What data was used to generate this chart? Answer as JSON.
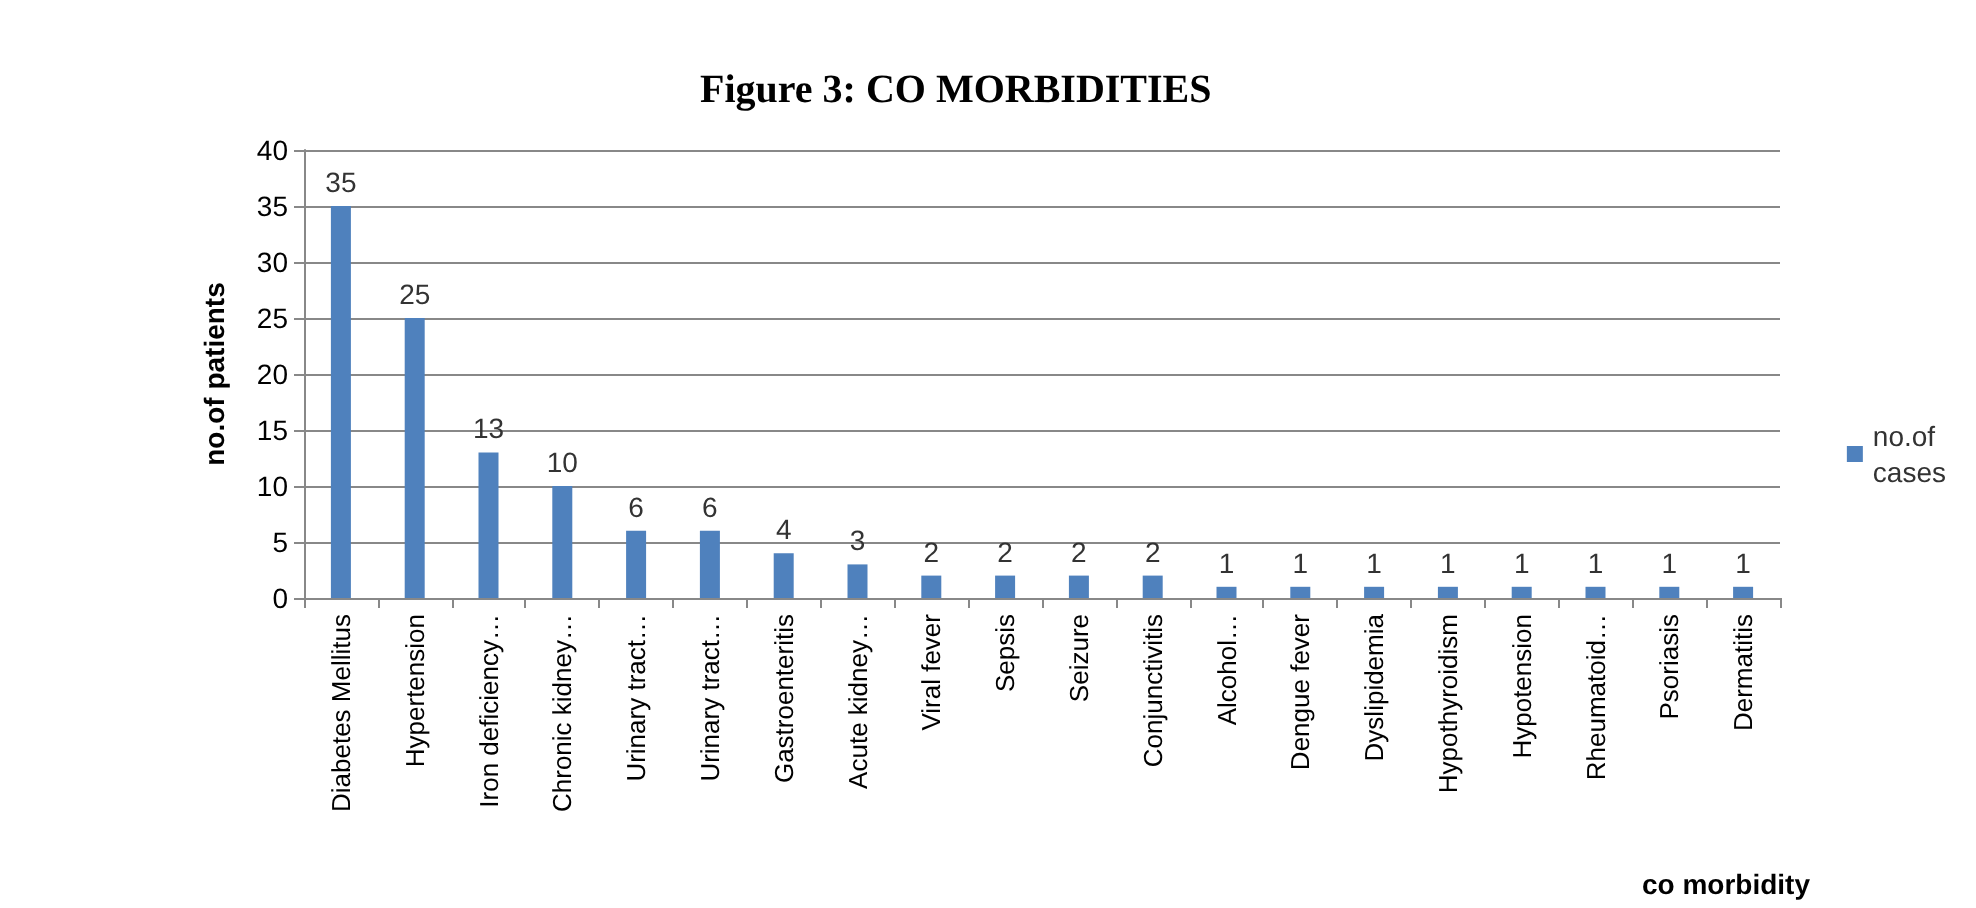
{
  "chart_data": {
    "type": "bar",
    "title": "Figure 3: CO MORBIDITIES",
    "xlabel": "co morbidity",
    "ylabel": "no.of patients",
    "categories": [
      "Diabetes Mellitus",
      "Hypertension",
      "Iron deficiency…",
      "Chronic kidney…",
      "Urinary tract…",
      "Urinary tract…",
      "Gastroenteritis",
      "Acute kidney…",
      "Viral fever",
      "Sepsis",
      "Seizure",
      "Conjunctivitis",
      "Alcohol…",
      "Dengue fever",
      "Dyslipidemia",
      "Hypothyroidism",
      "Hypotension",
      "Rheumatoid…",
      "Psoriasis",
      "Dermatitis"
    ],
    "series": [
      {
        "name": "no.of cases",
        "color": "#4f81bd",
        "values": [
          35,
          25,
          13,
          10,
          6,
          6,
          4,
          3,
          2,
          2,
          2,
          2,
          1,
          1,
          1,
          1,
          1,
          1,
          1,
          1
        ]
      }
    ],
    "ylim": [
      0,
      40
    ],
    "yticks": [
      0,
      5,
      10,
      15,
      20,
      25,
      30,
      35,
      40
    ],
    "grid": "y",
    "legend": "right",
    "data_labels": true
  }
}
